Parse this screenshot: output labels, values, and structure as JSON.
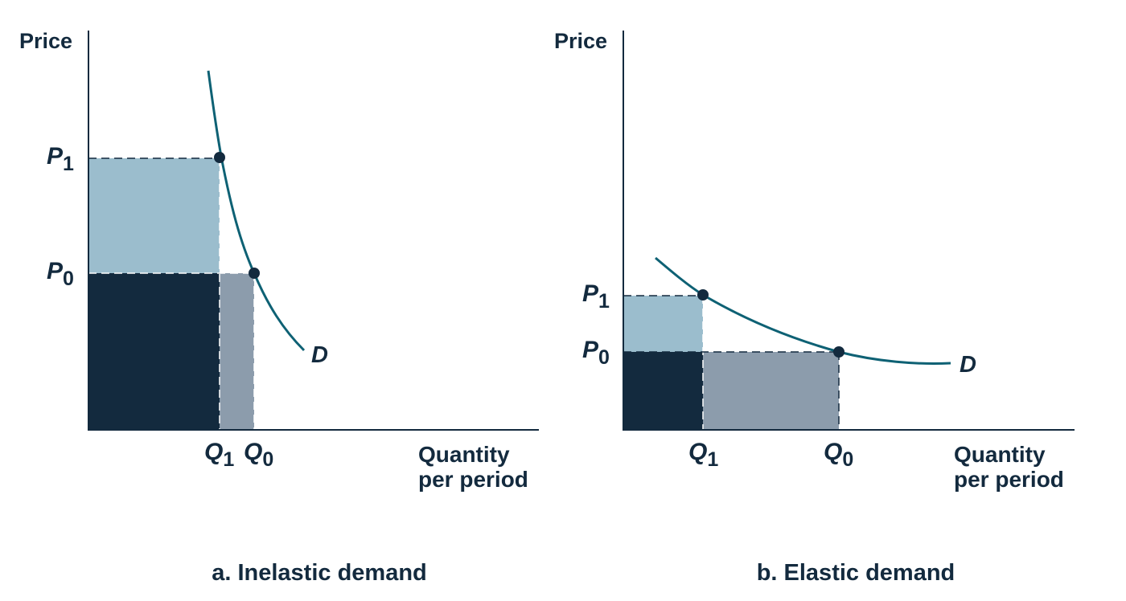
{
  "colors": {
    "dark_area": "#132a3e",
    "light_area": "#9bbdcd",
    "mid_area": "#8c9cac",
    "curve": "#0e6174",
    "text": "#132a3e"
  },
  "panel_a": {
    "y_axis_label": "Price",
    "x_axis_label_line1": "Quantity",
    "x_axis_label_line2": "per period",
    "p1_main": "P",
    "p1_sub": "1",
    "p0_main": "P",
    "p0_sub": "0",
    "q1_main": "Q",
    "q1_sub": "1",
    "q0_main": "Q",
    "q0_sub": "0",
    "curve_label": "D",
    "caption": "a. Inelastic demand"
  },
  "panel_b": {
    "y_axis_label": "Price",
    "x_axis_label_line1": "Quantity",
    "x_axis_label_line2": "per period",
    "p1_main": "P",
    "p1_sub": "1",
    "p0_main": "P",
    "p0_sub": "0",
    "q1_main": "Q",
    "q1_sub": "1",
    "q0_main": "Q",
    "q0_sub": "0",
    "curve_label": "D",
    "caption": "b. Elastic demand"
  }
}
